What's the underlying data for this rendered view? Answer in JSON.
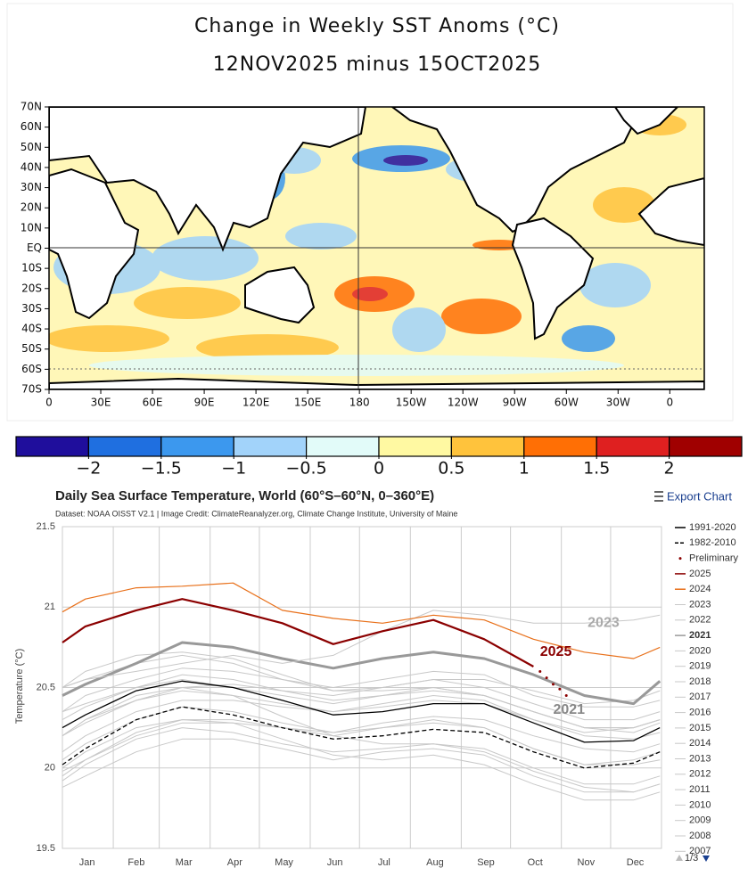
{
  "map": {
    "title_lines": [
      "Change in Weekly SST Anoms (°C)",
      "12NOV2025 minus 15OCT2025"
    ],
    "latlim": [
      70,
      -70
    ],
    "lonlim": [
      0,
      380
    ],
    "lat_ticks": [
      {
        "value": 70,
        "label": "70N"
      },
      {
        "value": 60,
        "label": "60N"
      },
      {
        "value": 50,
        "label": "50N"
      },
      {
        "value": 40,
        "label": "40N"
      },
      {
        "value": 30,
        "label": "30N"
      },
      {
        "value": 20,
        "label": "20N"
      },
      {
        "value": 10,
        "label": "10N"
      },
      {
        "value": 0,
        "label": "EQ"
      },
      {
        "value": -10,
        "label": "10S"
      },
      {
        "value": -20,
        "label": "20S"
      },
      {
        "value": -30,
        "label": "30S"
      },
      {
        "value": -40,
        "label": "40S"
      },
      {
        "value": -50,
        "label": "50S"
      },
      {
        "value": -60,
        "label": "60S"
      },
      {
        "value": -70,
        "label": "70S"
      }
    ],
    "lon_ticks": [
      0,
      {
        "value": 30,
        "label": "30E"
      },
      {
        "value": 60,
        "label": "60E"
      },
      {
        "value": 90,
        "label": "90E"
      },
      {
        "value": 120,
        "label": "120E"
      },
      {
        "value": 150,
        "label": "150E"
      },
      180,
      {
        "value": 210,
        "label": "150W"
      },
      {
        "value": 240,
        "label": "120W"
      },
      {
        "value": 270,
        "label": "90W"
      },
      {
        "value": 300,
        "label": "60W"
      },
      {
        "value": 330,
        "label": "30W"
      },
      {
        "value": 360,
        "label": "0"
      }
    ],
    "colorbar": {
      "lim": [
        -2.5,
        2.5
      ],
      "colors": [
        "#1f0e9c",
        "#1f6fe0",
        "#3c98ee",
        "#a2d3fa",
        "#e2fbf9",
        "#fff9a2",
        "#ffc33c",
        "#ff6f05",
        "#df2020",
        "#a00000"
      ],
      "ticks": [
        {
          "value": -2,
          "label": "−2"
        },
        {
          "value": -1.5,
          "label": "−1.5"
        },
        {
          "value": -1,
          "label": "−1"
        },
        {
          "value": -0.5,
          "label": "−0.5"
        },
        0,
        0.5,
        1,
        1.5,
        2
      ]
    }
  },
  "chart_data": {
    "type": "line",
    "title": "Daily Sea Surface Temperature, World (60°S–60°N, 0–360°E)",
    "subtitle": "Dataset: NOAA OISST V2.1 | Image Credit: ClimateReanalyzer.org, Climate Change Institute, University of Maine",
    "y_label": "Temperature (°C)",
    "xlim": [
      1,
      366
    ],
    "ylim": [
      19.5,
      21.5
    ],
    "yticks": [
      19.5,
      20,
      20.5,
      21,
      21.5
    ],
    "xticks": [
      {
        "value": 16,
        "label": "Jan"
      },
      {
        "value": 46,
        "label": "Feb"
      },
      {
        "value": 75,
        "label": "Mar"
      },
      {
        "value": 106,
        "label": "Apr"
      },
      {
        "value": 136,
        "label": "May"
      },
      {
        "value": 167,
        "label": "Jun"
      },
      {
        "value": 197,
        "label": "Jul"
      },
      {
        "value": 228,
        "label": "Aug"
      },
      {
        "value": 259,
        "label": "Sep"
      },
      {
        "value": 289,
        "label": "Oct"
      },
      {
        "value": 320,
        "label": "Nov"
      },
      {
        "value": 350,
        "label": "Dec"
      }
    ],
    "x_gridlines": [
      32,
      60,
      91,
      121,
      152,
      182,
      213,
      244,
      274,
      305,
      335
    ],
    "grid": true,
    "x": [
      1,
      15,
      46,
      74,
      105,
      135,
      166,
      196,
      227,
      258,
      288,
      319,
      349,
      365
    ],
    "series": [
      {
        "name": "1991-2020",
        "color": "#000000",
        "width": 1.3,
        "values": [
          20.25,
          20.33,
          20.48,
          20.54,
          20.5,
          20.42,
          20.33,
          20.35,
          20.4,
          20.4,
          20.28,
          20.16,
          20.17,
          20.25
        ]
      },
      {
        "name": "1982-2010",
        "color": "#000000",
        "width": 1.3,
        "dash": "dashed",
        "values": [
          20.02,
          20.12,
          20.3,
          20.38,
          20.33,
          20.25,
          20.18,
          20.2,
          20.24,
          20.22,
          20.1,
          20.0,
          20.03,
          20.1
        ]
      },
      {
        "name": "Preliminary",
        "color": "#8b0000",
        "dash": "dotted",
        "x": [
          292,
          296,
          300,
          304,
          308
        ],
        "values": [
          20.6,
          20.56,
          20.52,
          20.49,
          20.45
        ]
      },
      {
        "name": "2025",
        "color": "#8b0000",
        "width": 2.2,
        "values": [
          20.78,
          20.88,
          20.98,
          21.05,
          20.98,
          20.9,
          20.77,
          20.85,
          20.92,
          20.8,
          20.63,
          null,
          null,
          null
        ]
      },
      {
        "name": "2024",
        "color": "#e8701a",
        "width": 1.2,
        "values": [
          20.97,
          21.05,
          21.12,
          21.13,
          21.15,
          20.98,
          20.93,
          20.9,
          20.95,
          20.92,
          20.8,
          20.72,
          20.68,
          20.75
        ]
      },
      {
        "name": "2023",
        "color": "#c8c8c8",
        "width": 1,
        "values": [
          20.5,
          20.55,
          20.6,
          20.65,
          20.7,
          20.65,
          20.7,
          20.85,
          20.98,
          20.95,
          20.9,
          20.9,
          20.92,
          20.95
        ]
      },
      {
        "name": "2022",
        "color": "#c8c8c8",
        "width": 1,
        "values": [
          20.35,
          20.4,
          20.5,
          20.55,
          20.5,
          20.45,
          20.4,
          20.45,
          20.5,
          20.45,
          20.35,
          20.25,
          20.25,
          20.3
        ]
      },
      {
        "name": "2021",
        "color": "#999999",
        "width": 3,
        "bold": true,
        "values": [
          20.45,
          20.52,
          20.65,
          20.78,
          20.75,
          20.68,
          20.62,
          20.68,
          20.72,
          20.68,
          20.58,
          20.45,
          20.4,
          20.54
        ]
      },
      {
        "name": "2020",
        "color": "#c8c8c8",
        "width": 1,
        "values": [
          20.5,
          20.55,
          20.65,
          20.7,
          20.65,
          20.55,
          20.48,
          20.5,
          20.55,
          20.5,
          20.4,
          20.3,
          20.3,
          20.35
        ]
      },
      {
        "name": "2019",
        "color": "#c8c8c8",
        "width": 1,
        "values": [
          20.35,
          20.45,
          20.55,
          20.62,
          20.6,
          20.55,
          20.5,
          20.55,
          20.6,
          20.58,
          20.45,
          20.38,
          20.38,
          20.42
        ]
      },
      {
        "name": "2018",
        "color": "#c8c8c8",
        "width": 1,
        "values": [
          20.2,
          20.28,
          20.42,
          20.48,
          20.45,
          20.4,
          20.35,
          20.38,
          20.42,
          20.4,
          20.3,
          20.22,
          20.25,
          20.3
        ]
      },
      {
        "name": "2017",
        "color": "#c8c8c8",
        "width": 1,
        "values": [
          20.3,
          20.38,
          20.5,
          20.58,
          20.55,
          20.48,
          20.42,
          20.45,
          20.48,
          20.45,
          20.35,
          20.25,
          20.25,
          20.3
        ]
      },
      {
        "name": "2016",
        "color": "#c8c8c8",
        "width": 1,
        "values": [
          20.5,
          20.6,
          20.7,
          20.72,
          20.68,
          20.58,
          20.48,
          20.48,
          20.5,
          20.45,
          20.35,
          20.25,
          20.22,
          20.28
        ]
      },
      {
        "name": "2015",
        "color": "#c8c8c8",
        "width": 1,
        "values": [
          20.2,
          20.3,
          20.42,
          20.5,
          20.52,
          20.48,
          20.45,
          20.5,
          20.55,
          20.55,
          20.48,
          20.4,
          20.42,
          20.48
        ]
      },
      {
        "name": "2014",
        "color": "#c8c8c8",
        "width": 1,
        "values": [
          20.1,
          20.2,
          20.35,
          20.42,
          20.42,
          20.38,
          20.35,
          20.4,
          20.45,
          20.42,
          20.3,
          20.2,
          20.18,
          20.22
        ]
      },
      {
        "name": "2013",
        "color": "#c8c8c8",
        "width": 1,
        "values": [
          20.05,
          20.15,
          20.3,
          20.38,
          20.35,
          20.28,
          20.22,
          20.25,
          20.28,
          20.25,
          20.12,
          20.02,
          20.05,
          20.1
        ]
      },
      {
        "name": "2012",
        "color": "#c8c8c8",
        "width": 1,
        "values": [
          19.98,
          20.05,
          20.22,
          20.3,
          20.3,
          20.25,
          20.2,
          20.25,
          20.3,
          20.25,
          20.12,
          20.02,
          20.02,
          20.05
        ]
      },
      {
        "name": "2011",
        "color": "#c8c8c8",
        "width": 1,
        "values": [
          19.92,
          20.02,
          20.18,
          20.25,
          20.22,
          20.15,
          20.1,
          20.12,
          20.15,
          20.12,
          20.0,
          19.9,
          19.9,
          19.95
        ]
      },
      {
        "name": "2010",
        "color": "#c8c8c8",
        "width": 1,
        "values": [
          20.2,
          20.3,
          20.45,
          20.5,
          20.45,
          20.32,
          20.2,
          20.15,
          20.15,
          20.1,
          19.98,
          19.88,
          19.85,
          19.9
        ]
      },
      {
        "name": "2009",
        "color": "#c8c8c8",
        "width": 1,
        "values": [
          19.95,
          20.05,
          20.2,
          20.28,
          20.28,
          20.25,
          20.22,
          20.28,
          20.32,
          20.3,
          20.2,
          20.12,
          20.1,
          20.15
        ]
      },
      {
        "name": "2008",
        "color": "#c8c8c8",
        "width": 1,
        "values": [
          19.88,
          19.95,
          20.1,
          20.18,
          20.18,
          20.12,
          20.05,
          20.1,
          20.12,
          20.08,
          19.95,
          19.85,
          19.85,
          19.9
        ]
      },
      {
        "name": "2007",
        "color": "#c8c8c8",
        "width": 1,
        "values": [
          20.0,
          20.1,
          20.25,
          20.3,
          20.28,
          20.18,
          20.08,
          20.05,
          20.08,
          20.02,
          19.9,
          19.8,
          19.8,
          19.85
        ]
      }
    ],
    "annotations": [
      {
        "text": "2023",
        "x": 321,
        "y": 20.9,
        "color": "#aaaaaa"
      },
      {
        "text": "2025",
        "x": 292,
        "y": 20.72,
        "color": "#8b0000"
      },
      {
        "text": "2021",
        "x": 300,
        "y": 20.36,
        "color": "#888888"
      }
    ]
  },
  "controls": {
    "export": "Export Chart",
    "pager": "1/3"
  }
}
